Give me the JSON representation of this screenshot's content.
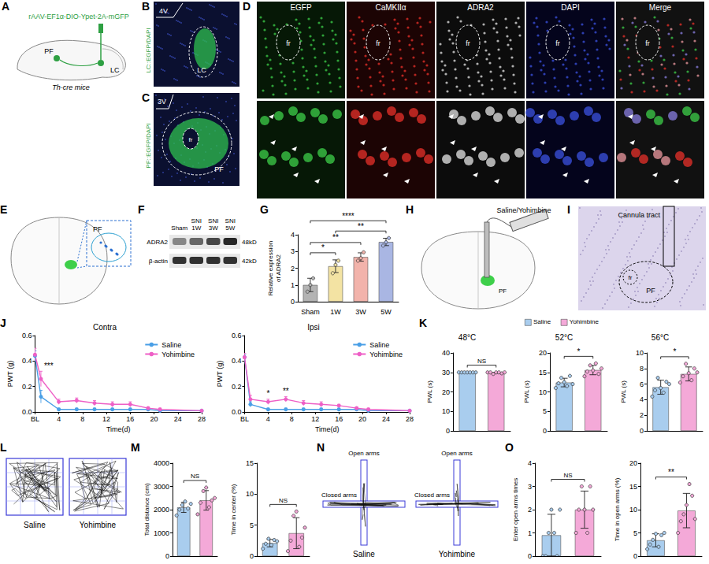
{
  "chart_data": [
    {
      "panel": "G",
      "type": "bar",
      "ylabel": "Relative expression of ADRA2",
      "categories": [
        "Sham",
        "1W",
        "3W",
        "5W"
      ],
      "colors": [
        "#b3b3b3",
        "#f3e3a3",
        "#f2b3ab",
        "#a9b6e3"
      ],
      "values": [
        1.0,
        2.12,
        2.67,
        3.57
      ],
      "errors": [
        0.4,
        0.38,
        0.25,
        0.22
      ],
      "points": [
        [
          0.6,
          1.0,
          1.4
        ],
        [
          1.7,
          2.2,
          2.45
        ],
        [
          2.45,
          2.6,
          2.95
        ],
        [
          3.35,
          3.55,
          3.8
        ]
      ],
      "ylim": [
        0,
        4
      ],
      "yticks": [
        0,
        1,
        2,
        3,
        4
      ],
      "annotations": [
        {
          "from": 0,
          "to": 1,
          "text": "*"
        },
        {
          "from": 0,
          "to": 2,
          "text": "**"
        },
        {
          "from": 1,
          "to": 3,
          "text": "**"
        },
        {
          "from": 0,
          "to": 3,
          "text": "****"
        }
      ]
    },
    {
      "panel": "J",
      "type": "line",
      "title": "Contra",
      "xlabel": "Time(d)",
      "ylabel": "PWT (g)",
      "x": [
        0,
        1,
        4,
        7,
        10,
        13,
        16,
        19,
        21,
        28
      ],
      "series": [
        {
          "name": "Saline",
          "color": "#4a9fe6",
          "marker": "circle",
          "values": [
            0.44,
            0.12,
            0.02,
            0.02,
            0.02,
            0.02,
            0.02,
            0.02,
            0.01,
            0.01
          ],
          "errors": [
            0.04,
            0.05,
            0.01,
            0.01,
            0.01,
            0.01,
            0.01,
            0.01,
            0.005,
            0.005
          ]
        },
        {
          "name": "Yohimbine",
          "color": "#ee5fc6",
          "marker": "circle",
          "values": [
            0.45,
            0.26,
            0.08,
            0.09,
            0.07,
            0.06,
            0.06,
            0.03,
            0.02,
            0.01
          ],
          "errors": [
            0.05,
            0.06,
            0.02,
            0.02,
            0.02,
            0.02,
            0.02,
            0.01,
            0.01,
            0.005
          ]
        }
      ],
      "xlim": [
        0,
        28
      ],
      "xticks": [
        {
          "value": 0,
          "label": "BL"
        },
        4,
        8,
        12,
        16,
        20,
        24,
        28
      ],
      "ylim": [
        0,
        0.6
      ],
      "yticks": [
        {
          "value": 0,
          "label": "0.0"
        },
        0.2,
        0.4,
        0.6
      ],
      "legend": "top-right",
      "annotations": [
        {
          "x": 1,
          "text": "***"
        }
      ]
    },
    {
      "type": "line",
      "title": "Ipsi",
      "xlabel": "Time(d)",
      "ylabel": "PWT (g)",
      "x": [
        0,
        1,
        4,
        7,
        10,
        13,
        16,
        19,
        21,
        28
      ],
      "series": [
        {
          "name": "Saline",
          "color": "#4a9fe6",
          "marker": "circle",
          "values": [
            0.43,
            0.06,
            0.02,
            0.02,
            0.02,
            0.02,
            0.02,
            0.02,
            0.01,
            0.01
          ],
          "errors": [
            0.02,
            0.02,
            0.01,
            0.01,
            0.01,
            0.01,
            0.01,
            0.01,
            0.005,
            0.005
          ]
        },
        {
          "name": "Yohimbine",
          "color": "#ee5fc6",
          "marker": "circle",
          "values": [
            0.43,
            0.1,
            0.08,
            0.1,
            0.07,
            0.06,
            0.05,
            0.03,
            0.02,
            0.01
          ],
          "errors": [
            0.03,
            0.03,
            0.02,
            0.02,
            0.02,
            0.02,
            0.01,
            0.01,
            0.01,
            0.005
          ]
        }
      ],
      "xlim": [
        0,
        28
      ],
      "xticks": [
        {
          "value": 0,
          "label": "BL"
        },
        4,
        8,
        12,
        16,
        20,
        24,
        28
      ],
      "ylim": [
        0,
        0.6
      ],
      "yticks": [
        {
          "value": 0,
          "label": "0.0"
        },
        0.2,
        0.4,
        0.6
      ],
      "legend": "top-right",
      "annotations": [
        {
          "x": 4,
          "text": "*"
        },
        {
          "x": 7,
          "text": "**"
        }
      ]
    },
    {
      "panel": "K",
      "type": "bar",
      "title": "48°C",
      "ylabel": "PWL (s)",
      "colors": [
        "#a9cdee",
        "#f4a9d8"
      ],
      "values": [
        30,
        29.8
      ],
      "errors": [
        0,
        0.3
      ],
      "points": [
        [
          30,
          30,
          30,
          30,
          30,
          30,
          30
        ],
        [
          30,
          30,
          29.2,
          30,
          30,
          29.5,
          30
        ]
      ],
      "ylim": [
        0,
        40
      ],
      "yticks": [
        0,
        10,
        20,
        30,
        40
      ],
      "tick_labels": "y",
      "annotations": [
        {
          "from": 0,
          "to": 1,
          "text": "NS"
        }
      ]
    },
    {
      "type": "bar",
      "title": "52°C",
      "ylabel": "PWL (s)",
      "categories": [
        "Saline",
        "Yohimbine"
      ],
      "colors": [
        "#a9cdee",
        "#f4a9d8"
      ],
      "values": [
        12.4,
        15.6
      ],
      "errors": [
        1.1,
        1.2
      ],
      "points": [
        [
          11.0,
          12.2,
          13.6,
          12.5,
          11.5,
          14.1,
          12.0
        ],
        [
          14.0,
          15.2,
          16.8,
          15.5,
          17.3,
          14.6,
          16.0
        ]
      ],
      "ylim": [
        0,
        20
      ],
      "yticks": [
        0,
        5,
        10,
        15,
        20
      ],
      "tick_labels": "y",
      "legend": "top",
      "annotations": [
        {
          "from": 0,
          "to": 1,
          "text": "*"
        }
      ]
    },
    {
      "type": "bar",
      "title": "56°C",
      "ylabel": "PWL (s)",
      "colors": [
        "#a9cdee",
        "#f4a9d8"
      ],
      "values": [
        5.6,
        7.3
      ],
      "errors": [
        0.9,
        0.9
      ],
      "points": [
        [
          4.4,
          5.2,
          6.8,
          5.5,
          4.9,
          6.3,
          6.0
        ],
        [
          6.2,
          7.0,
          8.6,
          7.4,
          6.5,
          8.0,
          7.5
        ]
      ],
      "ylim": [
        0,
        10
      ],
      "yticks": [
        0,
        2,
        4,
        6,
        8,
        10
      ],
      "tick_labels": "y",
      "annotations": [
        {
          "from": 0,
          "to": 1,
          "text": "*"
        }
      ]
    },
    {
      "panel": "M",
      "type": "bar",
      "ylabel": "Total distance (cm)",
      "colors": [
        "#a9cdee",
        "#f4a9d8"
      ],
      "values": [
        2100,
        2400
      ],
      "errors": [
        220,
        420
      ],
      "points": [
        [
          1750,
          2000,
          2200,
          2350,
          2050,
          2250
        ],
        [
          1800,
          2300,
          2800,
          2950,
          2100,
          2400,
          2500
        ]
      ],
      "ylim": [
        0,
        4000
      ],
      "yticks": [
        0,
        1000,
        2000,
        3000,
        4000
      ],
      "tick_labels": "y",
      "annotations": [
        {
          "from": 0,
          "to": 1,
          "text": "NS"
        }
      ]
    },
    {
      "type": "bar",
      "ylabel": "Time in center (%)",
      "colors": [
        "#a9cdee",
        "#f4a9d8"
      ],
      "values": [
        2.1,
        3.7
      ],
      "errors": [
        0.6,
        2.5
      ],
      "points": [
        [
          1.2,
          2.0,
          2.8,
          1.8,
          2.6,
          2.4
        ],
        [
          0.8,
          2.5,
          6.5,
          7.2,
          1.5,
          3.0,
          4.6
        ]
      ],
      "ylim": [
        0,
        15
      ],
      "yticks": [
        0,
        5,
        10,
        15
      ],
      "tick_labels": "y",
      "annotations": [
        {
          "from": 0,
          "to": 1,
          "text": "NS"
        }
      ]
    },
    {
      "panel": "O",
      "type": "bar",
      "ylabel": "Enter open arms times",
      "colors": [
        "#a9cdee",
        "#f4a9d8"
      ],
      "values": [
        0.9,
        2.0
      ],
      "errors": [
        0.9,
        0.8
      ],
      "points": [
        [
          0,
          0,
          1,
          2,
          1,
          0,
          2
        ],
        [
          1,
          2,
          3,
          2,
          1,
          3,
          2
        ]
      ],
      "ylim": [
        0,
        4
      ],
      "yticks": [
        0,
        1,
        2,
        3,
        4
      ],
      "tick_labels": "y",
      "annotations": [
        {
          "from": 0,
          "to": 1,
          "text": "NS"
        }
      ]
    },
    {
      "type": "bar",
      "ylabel": "Time in open arms (%)",
      "colors": [
        "#a9cdee",
        "#f4a9d8"
      ],
      "values": [
        3.4,
        9.8
      ],
      "errors": [
        1.4,
        3.7
      ],
      "points": [
        [
          1.5,
          2.5,
          3.5,
          4.8,
          2.0,
          4.5,
          5.0
        ],
        [
          5.0,
          7.5,
          9.0,
          11.0,
          15.5,
          13.0,
          8.0
        ]
      ],
      "ylim": [
        0,
        20
      ],
      "yticks": [
        0,
        5,
        10,
        15,
        20
      ],
      "tick_labels": "y",
      "annotations": [
        {
          "from": 0,
          "to": 1,
          "text": "**"
        }
      ]
    }
  ],
  "figure": {
    "A": {
      "letter": "A",
      "vector": "rAAV-EF1α-DIO-Ypet-2A-mGFP",
      "regions": [
        "PF",
        "LC"
      ],
      "mouse": "Th-cre mice"
    },
    "B": {
      "letter": "B",
      "label": "LC::EGFP/DAPI",
      "marks": [
        "4V",
        "LC"
      ]
    },
    "C": {
      "letter": "C",
      "label": "PF::EGFP/DAPI",
      "marks": [
        "3V",
        "fr",
        "PF"
      ]
    },
    "D": {
      "letter": "D",
      "columns": [
        "EGFP",
        "CaMKIIα",
        "ADRA2",
        "DAPI",
        "Merge"
      ],
      "mark": "fr"
    },
    "E": {
      "letter": "E",
      "region": "PF"
    },
    "F": {
      "letter": "F",
      "lanes": [
        "Sham",
        "SNI 1W",
        "SNI 3W",
        "SNI 5W"
      ],
      "rows": [
        {
          "protein": "ADRA2",
          "size": "48kD"
        },
        {
          "protein": "β-actin",
          "size": "42kD"
        }
      ]
    },
    "H": {
      "letter": "H",
      "drug": "Saline/Yohimbine",
      "region": "PF"
    },
    "I": {
      "letter": "I",
      "marks": [
        "Cannula tract",
        "fr",
        "PF"
      ]
    },
    "L": {
      "letter": "L",
      "groups": [
        "Saline",
        "Yohimbine"
      ]
    },
    "N": {
      "letter": "N",
      "arms": [
        "Open arms",
        "Closed arms"
      ],
      "groups": [
        "Saline",
        "Yohimbine"
      ]
    }
  }
}
